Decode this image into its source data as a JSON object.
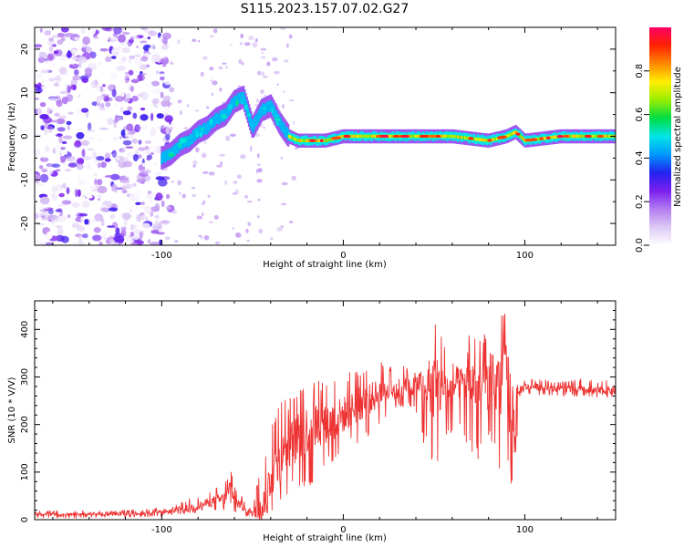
{
  "figure": {
    "title": "S115.2023.157.07.02.G27"
  },
  "colors": {
    "snr_line": "#ee3333",
    "axis": "#000000",
    "colormap": [
      "#ffffff",
      "#dcc8f5",
      "#b37cf0",
      "#7a1ff0",
      "#2222ee",
      "#0099ff",
      "#00e6e6",
      "#00dd44",
      "#99ee00",
      "#ffee00",
      "#ff8800",
      "#ff2200",
      "#ff0066"
    ]
  },
  "chart_data": [
    {
      "type": "heatmap",
      "name": "spectrogram",
      "xlabel": "Height of straight line (km)",
      "ylabel": "Frequency (Hz)",
      "xlim": [
        -170,
        150
      ],
      "ylim": [
        -25,
        25
      ],
      "xticks": [
        -100,
        0,
        100
      ],
      "xtick_labels": [
        "-100",
        "0",
        "100"
      ],
      "yticks": [
        -20,
        -10,
        0,
        10,
        20
      ],
      "ytick_labels": [
        "-20",
        "-10",
        "0",
        "10",
        "20"
      ],
      "ridge_frequency": {
        "x": [
          -100,
          -95,
          -90,
          -85,
          -80,
          -75,
          -70,
          -65,
          -60,
          -55,
          -50,
          -45,
          -40,
          -35,
          -30,
          -25,
          -20,
          -10,
          0,
          20,
          40,
          60,
          80,
          90,
          95,
          100,
          120,
          150
        ],
        "y": [
          -5,
          -4,
          -2,
          -1,
          1,
          2,
          4,
          5,
          8,
          9,
          2,
          6,
          7,
          3,
          0,
          -1,
          -1,
          -1,
          0,
          0,
          0,
          0,
          -1,
          0,
          1,
          -1,
          0,
          0
        ]
      },
      "noise_region_x": [
        -170,
        -95
      ],
      "colorbar": {
        "label": "Normalized spectral amplitude",
        "range": [
          0,
          1
        ],
        "ticks": [
          0.0,
          0.2,
          0.4,
          0.6,
          0.8
        ],
        "tick_labels": [
          "0.0",
          "0.2",
          "0.4",
          "0.6",
          "0.8"
        ]
      }
    },
    {
      "type": "line",
      "name": "snr",
      "xlabel": "Height of straight line (km)",
      "ylabel": "SNR (10 * V/V)",
      "xlim": [
        -170,
        150
      ],
      "ylim": [
        0,
        460
      ],
      "xticks": [
        -100,
        0,
        100
      ],
      "xtick_labels": [
        "-100",
        "0",
        "100"
      ],
      "yticks": [
        0,
        100,
        200,
        300,
        400
      ],
      "ytick_labels": [
        "0",
        "100",
        "200",
        "300",
        "400"
      ],
      "series": [
        {
          "name": "SNR",
          "x": [
            -170,
            -160,
            -150,
            -140,
            -130,
            -120,
            -110,
            -100,
            -95,
            -90,
            -85,
            -80,
            -75,
            -70,
            -65,
            -62,
            -60,
            -55,
            -50,
            -45,
            -40,
            -35,
            -30,
            -25,
            -20,
            -15,
            -10,
            -5,
            0,
            5,
            10,
            15,
            20,
            25,
            30,
            35,
            40,
            45,
            50,
            55,
            60,
            65,
            70,
            75,
            80,
            85,
            90,
            95,
            97,
            100,
            110,
            120,
            130,
            140,
            150
          ],
          "y": [
            10,
            12,
            10,
            12,
            11,
            12,
            14,
            15,
            18,
            22,
            25,
            28,
            35,
            40,
            45,
            70,
            40,
            25,
            15,
            20,
            90,
            120,
            160,
            170,
            190,
            200,
            200,
            210,
            220,
            235,
            245,
            255,
            265,
            270,
            275,
            280,
            285,
            290,
            280,
            270,
            280,
            290,
            285,
            280,
            290,
            285,
            290,
            200,
            270,
            280,
            278,
            275,
            272,
            270,
            272
          ],
          "envelope_max": [
            18,
            20,
            18,
            20,
            18,
            20,
            22,
            25,
            28,
            38,
            45,
            50,
            60,
            75,
            80,
            115,
            70,
            45,
            30,
            120,
            200,
            250,
            260,
            290,
            285,
            300,
            290,
            310,
            300,
            330,
            320,
            325,
            340,
            320,
            330,
            325,
            330,
            310,
            425,
            390,
            350,
            320,
            400,
            390,
            415,
            410,
            460,
            420,
            300,
            295,
            295,
            290,
            300,
            295,
            300
          ],
          "envelope_min": [
            2,
            3,
            2,
            4,
            3,
            4,
            5,
            6,
            8,
            10,
            12,
            15,
            18,
            20,
            20,
            25,
            12,
            5,
            5,
            5,
            10,
            30,
            40,
            60,
            60,
            80,
            110,
            120,
            130,
            150,
            160,
            180,
            200,
            220,
            230,
            240,
            220,
            140,
            90,
            170,
            150,
            180,
            140,
            120,
            150,
            100,
            90,
            50,
            240,
            260,
            262,
            260,
            258,
            256,
            258
          ]
        }
      ]
    }
  ]
}
